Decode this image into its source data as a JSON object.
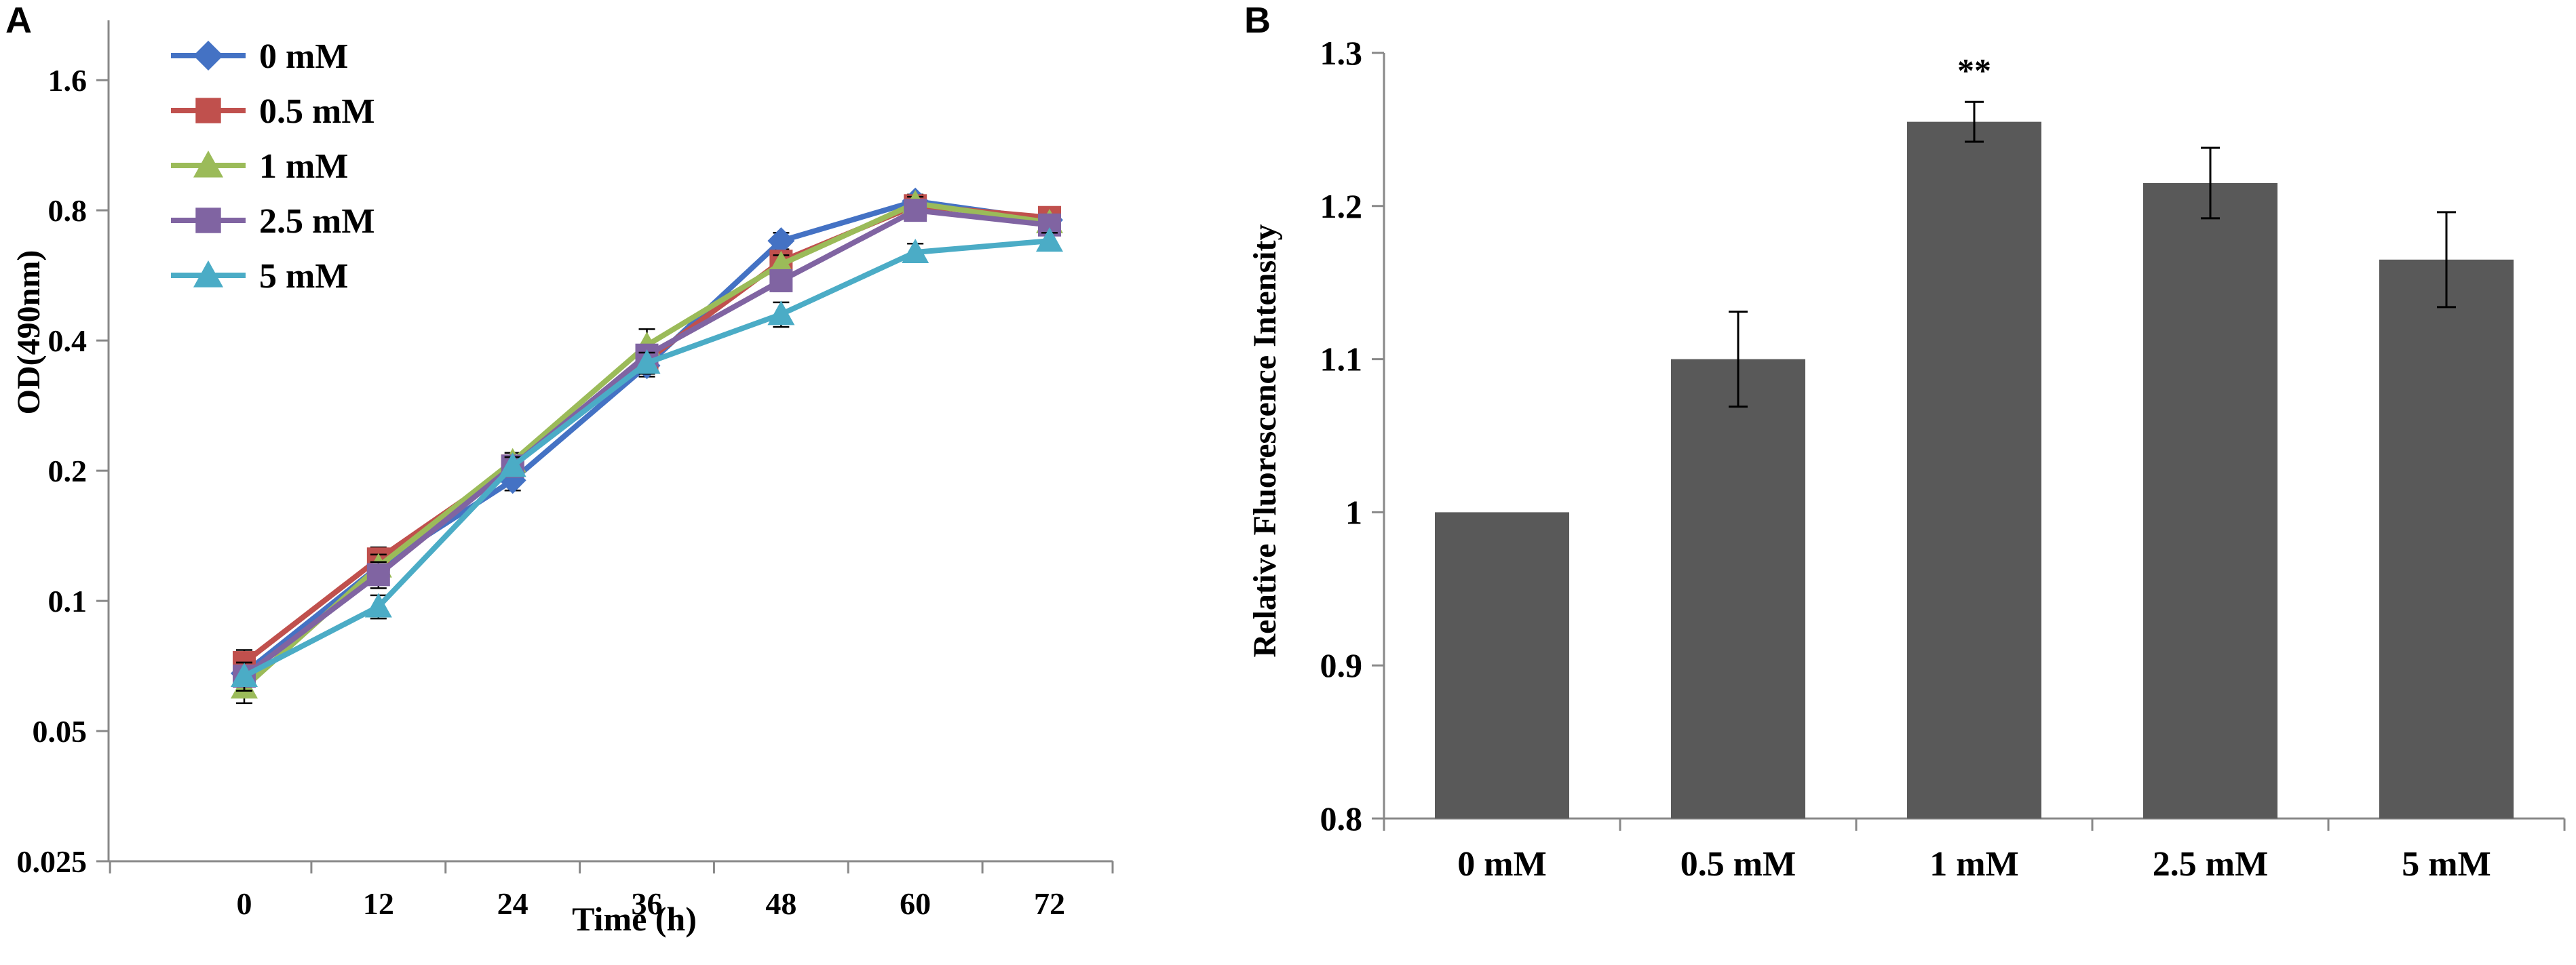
{
  "chart_data": [
    {
      "panel": "A",
      "type": "line",
      "y_scale": "log2",
      "xlabel": "Time (h)",
      "ylabel": "OD(490nm)",
      "x": [
        0,
        12,
        24,
        36,
        48,
        60,
        72
      ],
      "x_tick_labels": [
        "0",
        "12",
        "24",
        "36",
        "48",
        "60",
        "72"
      ],
      "y_ticks": [
        0.025,
        0.05,
        0.1,
        0.2,
        0.4,
        0.8,
        1.6
      ],
      "y_tick_labels": [
        "0.025",
        "0.05",
        "0.1",
        "0.2",
        "0.4",
        "0.8",
        "1.6"
      ],
      "ylim": [
        0.025,
        2.2
      ],
      "legend_position": "top-left",
      "series": [
        {
          "name": "0 mM",
          "color": "#4472C4",
          "marker": "diamond",
          "values": [
            0.068,
            0.12,
            0.19,
            0.35,
            0.68,
            0.84,
            0.76
          ],
          "errors": [
            0.006,
            0.008,
            0.01,
            0.02,
            0.03,
            0.03,
            0.03
          ]
        },
        {
          "name": "0.5 mM",
          "color": "#C0504D",
          "marker": "square",
          "values": [
            0.072,
            0.125,
            0.205,
            0.36,
            0.61,
            0.82,
            0.77
          ],
          "errors": [
            0.005,
            0.008,
            0.01,
            0.02,
            0.03,
            0.03,
            0.03
          ]
        },
        {
          "name": "1 mM",
          "color": "#9BBB59",
          "marker": "triangle",
          "values": [
            0.063,
            0.12,
            0.21,
            0.39,
            0.6,
            0.83,
            0.75
          ],
          "errors": [
            0.005,
            0.008,
            0.01,
            0.035,
            0.03,
            0.03,
            0.03
          ]
        },
        {
          "name": "2.5 mM",
          "color": "#8064A2",
          "marker": "square",
          "values": [
            0.067,
            0.115,
            0.205,
            0.37,
            0.55,
            0.8,
            0.74
          ],
          "errors": [
            0.005,
            0.008,
            0.01,
            0.02,
            0.03,
            0.03,
            0.03
          ]
        },
        {
          "name": "5 mM",
          "color": "#4BACC6",
          "marker": "triangle",
          "values": [
            0.067,
            0.097,
            0.205,
            0.355,
            0.46,
            0.64,
            0.68
          ],
          "errors": [
            0.005,
            0.006,
            0.01,
            0.02,
            0.03,
            0.03,
            0.03
          ]
        }
      ]
    },
    {
      "panel": "B",
      "type": "bar",
      "xlabel": "",
      "ylabel": "Relative Fluorescence Intensity",
      "categories": [
        "0 mM",
        "0.5 mM",
        "1 mM",
        "2.5 mM",
        "5 mM"
      ],
      "values": [
        1.0,
        1.1,
        1.255,
        1.215,
        1.165
      ],
      "errors": [
        0,
        0.031,
        0.013,
        0.023,
        0.031
      ],
      "annotations": [
        "",
        "",
        "**",
        "",
        ""
      ],
      "bar_color": "#595959",
      "y_ticks": [
        0.8,
        0.9,
        1.0,
        1.1,
        1.2,
        1.3
      ],
      "y_tick_labels": [
        "0.8",
        "0.9",
        "1",
        "1.1",
        "1.2",
        "1.3"
      ],
      "ylim": [
        0.8,
        1.3
      ]
    }
  ]
}
